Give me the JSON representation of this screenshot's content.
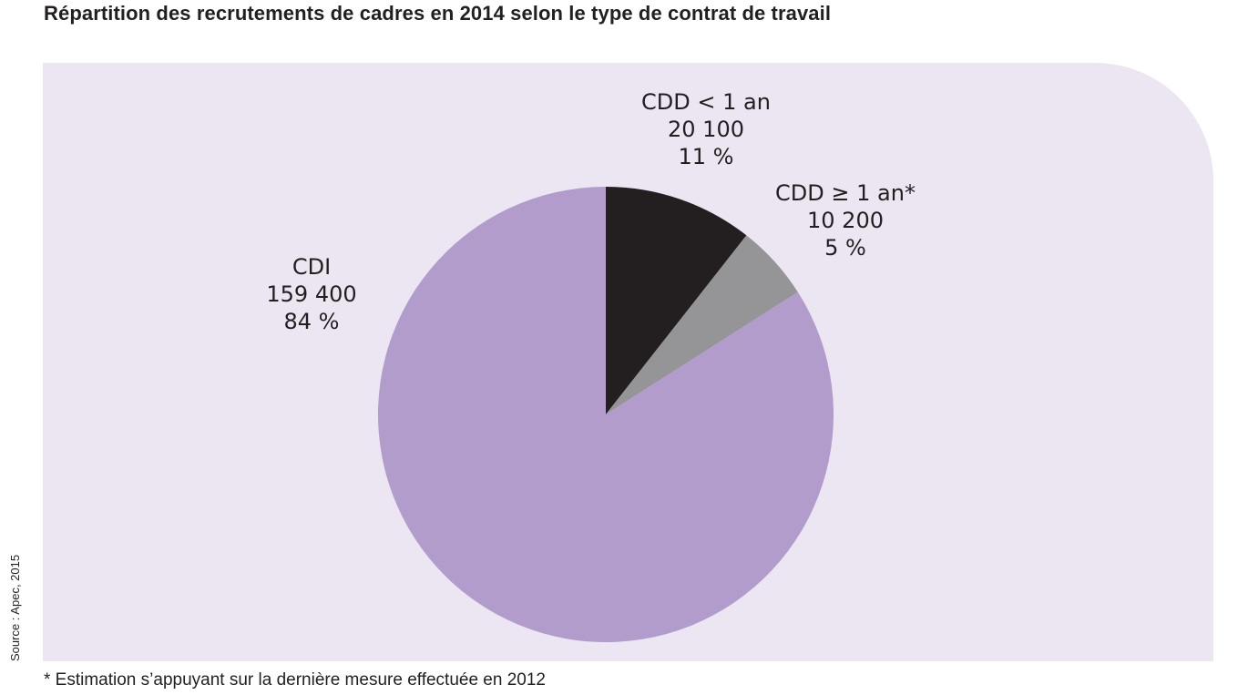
{
  "chart_data": {
    "type": "pie",
    "title": "Répartition des recrutements de cadres en 2014 selon le type de contrat de travail",
    "slices": [
      {
        "label": "CDD < 1 an",
        "value": 20100,
        "value_text": "20 100",
        "percent": 11,
        "percent_text": "11 %",
        "color": "#231f20"
      },
      {
        "label": "CDD ≥ 1 an*",
        "value": 10200,
        "value_text": "10 200",
        "percent": 5,
        "percent_text": "5 %",
        "color": "#959597"
      },
      {
        "label": "CDI",
        "value": 159400,
        "value_text": "159 400",
        "percent": 84,
        "percent_text": "84 %",
        "color": "#b19ccc"
      }
    ],
    "start_angle": "12 o'clock",
    "direction": "clockwise"
  },
  "panel_color": "#ebe6f2",
  "source": "Source : Apec, 2015",
  "footnote": "* Estimation s’appuyant sur la dernière mesure effectuée en 2012"
}
